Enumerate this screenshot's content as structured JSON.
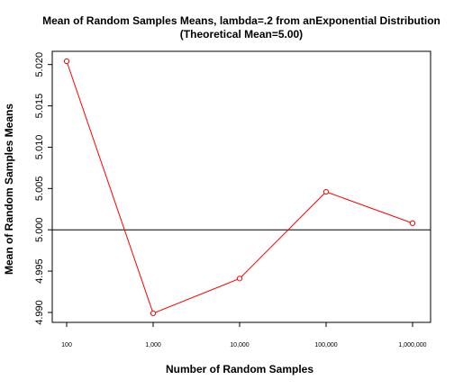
{
  "chart_data": {
    "type": "line",
    "title": "Mean of Random Samples Means, lambda=.2 from anExponential Distribution",
    "subtitle": "(Theoretical Mean=5.00)",
    "xlabel": "Number of Random Samples",
    "ylabel": "Mean of Random Samples Means",
    "categories": [
      "100",
      "1,000",
      "10,000",
      "100,000",
      "1,000,000"
    ],
    "values": [
      5.0204,
      4.9899,
      4.9941,
      5.0046,
      5.0008
    ],
    "ylim": [
      4.9888,
      5.0216
    ],
    "yticks": [
      4.99,
      4.995,
      5.0,
      5.005,
      5.01,
      5.015,
      5.02
    ],
    "ytick_labels": [
      "4.990",
      "4.995",
      "5.000",
      "5.005",
      "5.010",
      "5.015",
      "5.020"
    ],
    "reference_line": 5.0,
    "grid": false,
    "line_color": "#ff0000",
    "point_color": "#ff0000",
    "reference_color": "#000000"
  }
}
